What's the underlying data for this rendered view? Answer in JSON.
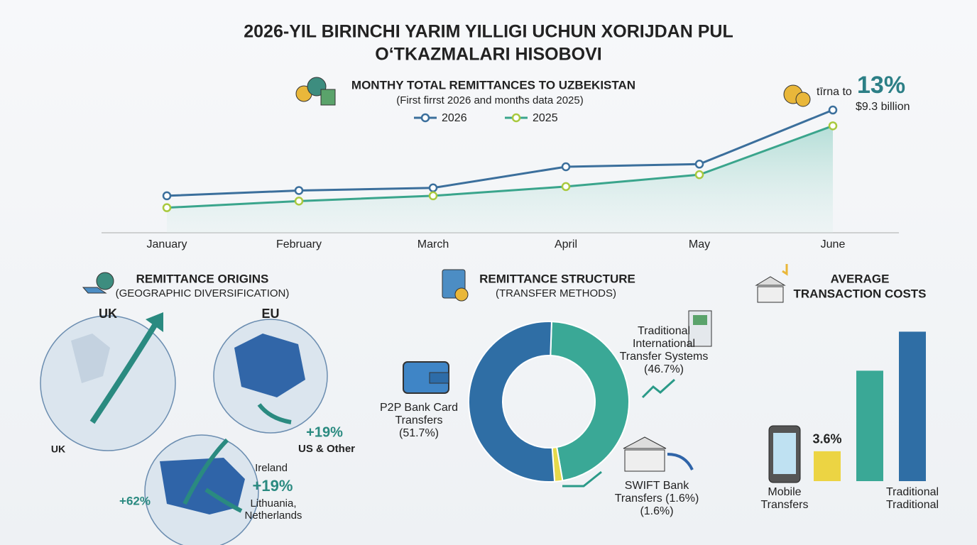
{
  "header": {
    "title": [
      "2026-YIL BIRINCHI YARIM YILLIGI UCHUN XORIJDAN PUL",
      "O‘TKAZMALARI HISOBOVI"
    ]
  },
  "chart_data": [
    {
      "type": "line",
      "title": "MONTHY TOTAL REMITTANCES TO UZBEKISTAN",
      "subtitle": "(First firrst 2026 and montħs data 2025)",
      "categories": [
        "January",
        "February",
        "March",
        "April",
        "May",
        "June"
      ],
      "series": [
        {
          "name": "2026",
          "color": "#3b6f9c",
          "values": [
            2.8,
            3.2,
            3.4,
            5.0,
            5.2,
            9.3
          ]
        },
        {
          "name": "2025",
          "color": "#3aa58c",
          "marker_color": "#a9c93e",
          "values": [
            1.9,
            2.4,
            2.8,
            3.5,
            4.4,
            8.1
          ]
        }
      ],
      "ylim": [
        0,
        10
      ],
      "grid": false,
      "annotation": {
        "prefix": "tīrna to",
        "change": "13%",
        "total": "$9.3 billion"
      }
    },
    {
      "type": "pie",
      "donut": true,
      "title": "REMITTANCE STRUCTURE",
      "subtitle": "(TRANSFER METHODS)",
      "categories": [
        "Traditional International Transfer Systems (46.7%)",
        "SWIFT Bank Transfers (1.6%) (1.6%)",
        "P2P Bank Card Transfers (51.7%)"
      ],
      "values": [
        46.7,
        1.6,
        51.7
      ],
      "colors": [
        "#3aa896",
        "#e6d94a",
        "#2f6ea5"
      ]
    },
    {
      "type": "bar",
      "title": [
        "AVERAGE",
        "TRANSACTION COSTS"
      ],
      "categories": [
        "Mobile Transfers",
        null,
        "Traditional Traditional"
      ],
      "values": [
        3.6,
        13.3,
        18.0
      ],
      "value_labels": [
        "3.6%",
        null,
        null
      ],
      "colors": [
        "#ecd443",
        "#3aa896",
        "#2f6ea5"
      ],
      "ylim": [
        0,
        20
      ],
      "grid": false
    }
  ],
  "origins": {
    "title": "REMITTANCE ORIGINS",
    "subtitle": "(GEOGRAPHIC DIVERSIFICATION)",
    "labels": [
      "UK",
      "EU",
      "UK",
      "+19%",
      "US & Other",
      "Ireland",
      "+19%",
      "+62%",
      "Lithuania,",
      "Netherlands"
    ]
  }
}
